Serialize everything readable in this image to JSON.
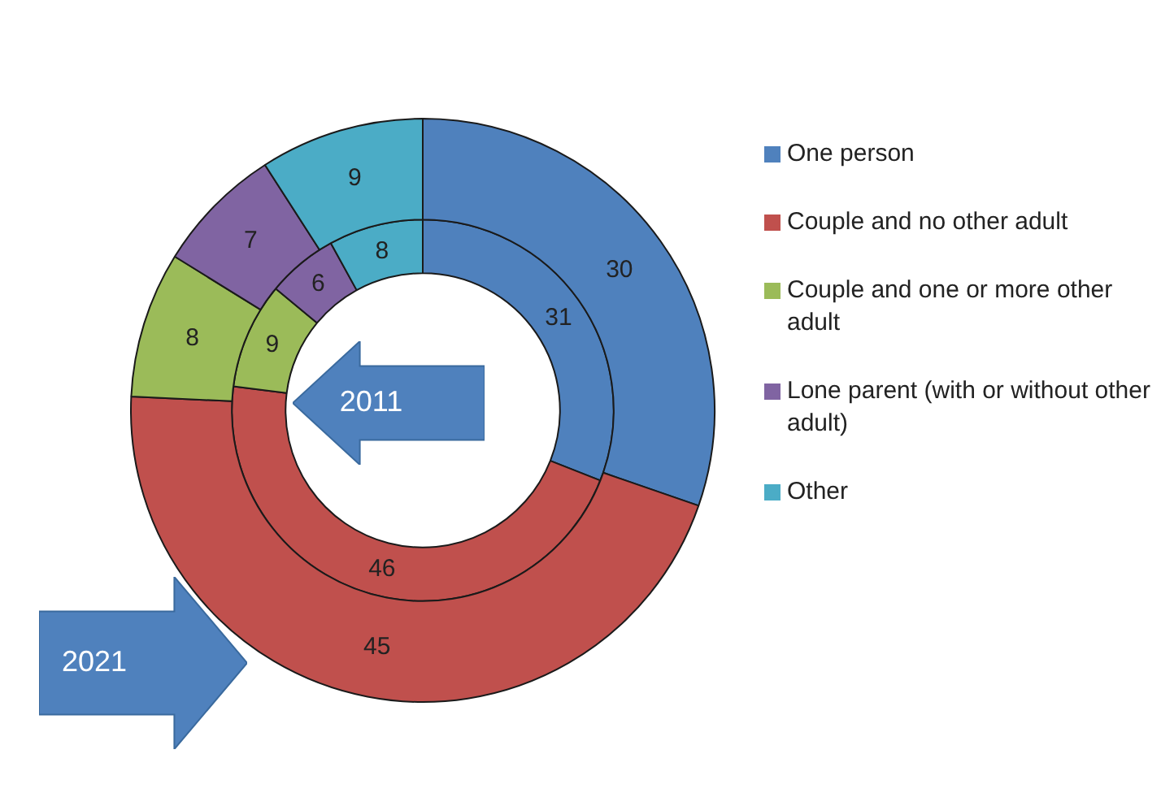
{
  "chart_data": {
    "type": "donut",
    "categories": [
      "One person",
      "Couple and no other adult",
      "Couple and one or more other adult",
      "Lone parent (with or without other adult)",
      "Other"
    ],
    "colors": [
      "#4f81bd",
      "#c0504d",
      "#9bbb59",
      "#8064a2",
      "#4bacc6"
    ],
    "series": [
      {
        "name": "2011",
        "values": [
          31,
          46,
          9,
          6,
          8
        ]
      },
      {
        "name": "2021",
        "values": [
          30,
          45,
          8,
          7,
          9
        ]
      }
    ],
    "data_labels": true,
    "legend": "right"
  }
}
